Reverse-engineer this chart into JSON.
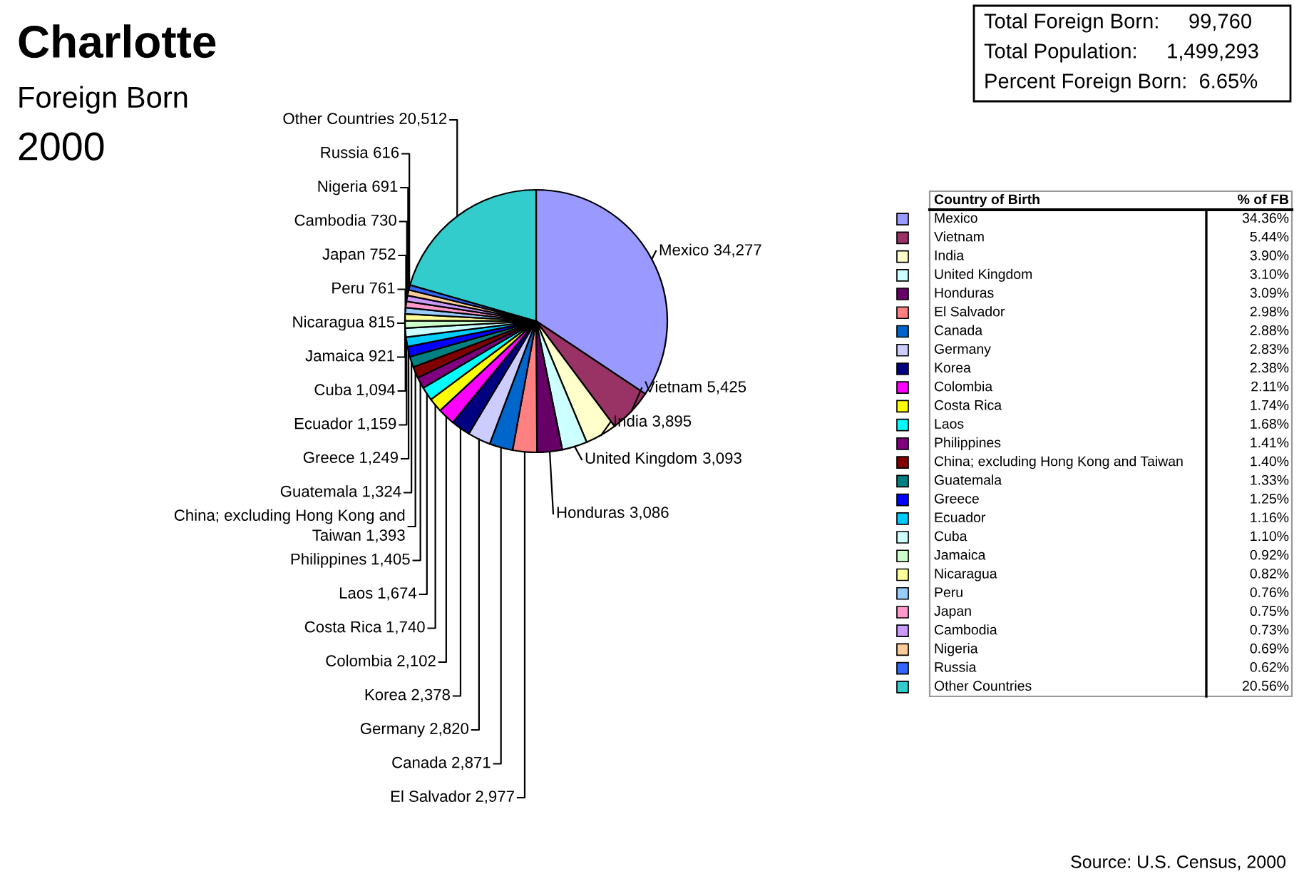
{
  "chart_data": [
    {
      "type": "pie",
      "title": "Charlotte",
      "subtitle": "Foreign Born",
      "categories": [
        "Mexico",
        "Vietnam",
        "India",
        "United Kingdom",
        "Honduras",
        "El Salvador",
        "Canada",
        "Germany",
        "Korea",
        "Colombia",
        "Costa Rica",
        "Laos",
        "Philippines",
        "China; excluding Hong Kong and Taiwan",
        "Guatemala",
        "Greece",
        "Ecuador",
        "Cuba",
        "Jamaica",
        "Nicaragua",
        "Peru",
        "Japan",
        "Cambodia",
        "Nigeria",
        "Russia",
        "Other Countries"
      ],
      "values": [
        34277,
        5425,
        3895,
        3093,
        3086,
        2977,
        2871,
        2820,
        2378,
        2102,
        1740,
        1674,
        1405,
        1393,
        1324,
        1249,
        1159,
        1094,
        921,
        815,
        761,
        752,
        730,
        691,
        616,
        20512
      ],
      "colors": [
        "#9999ff",
        "#993366",
        "#ffffcc",
        "#ccffff",
        "#660066",
        "#ff8080",
        "#0066cc",
        "#ccccff",
        "#000080",
        "#ff00ff",
        "#ffff00",
        "#00ffff",
        "#800080",
        "#800000",
        "#008080",
        "#0000ff",
        "#00ccff",
        "#ccffff",
        "#ccffcc",
        "#ffff99",
        "#99ccff",
        "#ff99cc",
        "#cc99ff",
        "#ffcc99",
        "#3366ff",
        "#33cccc"
      ],
      "value_labels": [
        "34,277",
        "5,425",
        "3,895",
        "3,093",
        "3,086",
        "2,977",
        "2,871",
        "2,820",
        "2,378",
        "2,102",
        "1,740",
        "1,674",
        "1,405",
        "1,393",
        "1,324",
        "1,249",
        "1,159",
        "1,094",
        "921",
        "815",
        "761",
        "752",
        "730",
        "691",
        "616",
        "20,512"
      ],
      "legend": "right",
      "legend_title": "Country of Birth",
      "annotations": [
        "2000",
        "Total Foreign Born:     99,760",
        "Total Population:     1,499,293",
        "Percent Foreign Born:  6.65%",
        "Source: U.S. Census, 2000"
      ]
    },
    {
      "type": "other",
      "title": "% of FB",
      "value_labels": [
        "34.36%",
        "5.44%",
        "3.90%",
        "3.10%",
        "3.09%",
        "2.98%",
        "2.88%",
        "2.83%",
        "2.38%",
        "2.11%",
        "1.74%",
        "1.68%",
        "1.41%",
        "1.40%",
        "1.33%",
        "1.25%",
        "1.16%",
        "1.10%",
        "0.92%",
        "0.82%",
        "0.76%",
        "0.75%",
        "0.73%",
        "0.69%",
        "0.62%",
        "20.56%"
      ]
    }
  ]
}
